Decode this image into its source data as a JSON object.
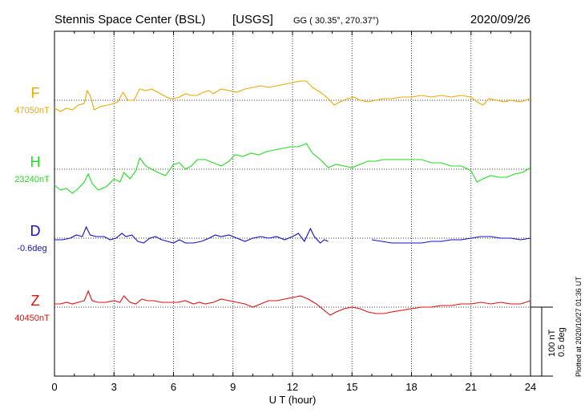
{
  "header": {
    "station": "Stennis Space Center (BSL)",
    "agency": "[USGS]",
    "coords": "GG ( 30.35°, 270.37°)",
    "date": "2020/09/26"
  },
  "footer": {
    "plotted_note": "Plotted at 2020/10/27 01:36 UT",
    "scale_nt": "100 nT",
    "scale_deg": "0.5 deg"
  },
  "chart_data": {
    "type": "line",
    "title": "Stennis Space Center (BSL)",
    "xlabel": "U T (hour)",
    "ylabel": "",
    "xlim": [
      0,
      24
    ],
    "xticks": [
      "0",
      "3",
      "6",
      "9",
      "12",
      "15",
      "18",
      "21",
      "24"
    ],
    "xtick_values": [
      0,
      3,
      6,
      9,
      12,
      15,
      18,
      21,
      24
    ],
    "grid": true,
    "scale": "100 nT / 0.5 deg per bar",
    "series": [
      {
        "name": "F",
        "baseline_label": "47050nT",
        "color": "#f0a800",
        "offset_units": [
          [
            0,
            -10
          ],
          [
            0.3,
            -14
          ],
          [
            0.6,
            -10
          ],
          [
            0.9,
            -12
          ],
          [
            1.2,
            -6
          ],
          [
            1.5,
            -4
          ],
          [
            1.65,
            12
          ],
          [
            1.8,
            6
          ],
          [
            2.0,
            -12
          ],
          [
            2.3,
            -8
          ],
          [
            2.7,
            -6
          ],
          [
            3.0,
            -4
          ],
          [
            3.2,
            -2
          ],
          [
            3.45,
            10
          ],
          [
            3.7,
            0
          ],
          [
            4.0,
            0
          ],
          [
            4.3,
            14
          ],
          [
            4.6,
            12
          ],
          [
            4.9,
            14
          ],
          [
            5.2,
            10
          ],
          [
            5.5,
            6
          ],
          [
            5.8,
            2
          ],
          [
            6.0,
            2
          ],
          [
            6.3,
            4
          ],
          [
            6.6,
            8
          ],
          [
            6.9,
            6
          ],
          [
            7.2,
            6
          ],
          [
            7.5,
            10
          ],
          [
            7.8,
            12
          ],
          [
            8.0,
            8
          ],
          [
            8.4,
            14
          ],
          [
            8.8,
            12
          ],
          [
            9.2,
            10
          ],
          [
            9.6,
            14
          ],
          [
            10.0,
            16
          ],
          [
            10.4,
            18
          ],
          [
            10.8,
            16
          ],
          [
            11.2,
            18
          ],
          [
            11.6,
            20
          ],
          [
            12.0,
            22
          ],
          [
            12.4,
            24
          ],
          [
            12.7,
            24
          ],
          [
            13.0,
            16
          ],
          [
            13.4,
            10
          ],
          [
            13.8,
            2
          ],
          [
            14.1,
            -6
          ],
          [
            14.4,
            -2
          ],
          [
            14.8,
            2
          ],
          [
            15.1,
            4
          ],
          [
            15.4,
            0
          ],
          [
            15.8,
            -2
          ],
          [
            16.2,
            0
          ],
          [
            16.6,
            2
          ],
          [
            17.0,
            2
          ],
          [
            17.5,
            4
          ],
          [
            18.0,
            4
          ],
          [
            18.5,
            6
          ],
          [
            19.0,
            4
          ],
          [
            19.5,
            6
          ],
          [
            20.0,
            4
          ],
          [
            20.5,
            6
          ],
          [
            21.0,
            4
          ],
          [
            21.3,
            -2
          ],
          [
            21.6,
            -6
          ],
          [
            21.9,
            2
          ],
          [
            22.3,
            0
          ],
          [
            22.7,
            -2
          ],
          [
            23.0,
            0
          ],
          [
            23.5,
            -2
          ],
          [
            24.0,
            2
          ]
        ]
      },
      {
        "name": "H",
        "baseline_label": "23240nT",
        "color": "#22dd22",
        "offset_units": [
          [
            0,
            -20
          ],
          [
            0.3,
            -26
          ],
          [
            0.6,
            -24
          ],
          [
            0.9,
            -30
          ],
          [
            1.2,
            -24
          ],
          [
            1.5,
            -16
          ],
          [
            1.7,
            -6
          ],
          [
            1.9,
            -18
          ],
          [
            2.2,
            -26
          ],
          [
            2.6,
            -22
          ],
          [
            3.0,
            -12
          ],
          [
            3.3,
            -16
          ],
          [
            3.5,
            -4
          ],
          [
            3.8,
            -12
          ],
          [
            4.1,
            -2
          ],
          [
            4.3,
            14
          ],
          [
            4.6,
            4
          ],
          [
            4.9,
            0
          ],
          [
            5.2,
            -4
          ],
          [
            5.6,
            -8
          ],
          [
            6.0,
            6
          ],
          [
            6.3,
            8
          ],
          [
            6.6,
            0
          ],
          [
            6.9,
            4
          ],
          [
            7.2,
            12
          ],
          [
            7.6,
            12
          ],
          [
            8.0,
            8
          ],
          [
            8.4,
            4
          ],
          [
            8.8,
            10
          ],
          [
            9.1,
            18
          ],
          [
            9.5,
            16
          ],
          [
            9.9,
            20
          ],
          [
            10.3,
            18
          ],
          [
            10.7,
            22
          ],
          [
            11.1,
            24
          ],
          [
            11.5,
            26
          ],
          [
            11.9,
            28
          ],
          [
            12.3,
            28
          ],
          [
            12.7,
            32
          ],
          [
            13.0,
            20
          ],
          [
            13.4,
            12
          ],
          [
            13.8,
            2
          ],
          [
            14.2,
            6
          ],
          [
            14.6,
            4
          ],
          [
            15.0,
            2
          ],
          [
            15.4,
            6
          ],
          [
            15.8,
            10
          ],
          [
            16.2,
            10
          ],
          [
            16.6,
            12
          ],
          [
            17.0,
            12
          ],
          [
            17.5,
            12
          ],
          [
            18.0,
            12
          ],
          [
            18.5,
            12
          ],
          [
            19.0,
            8
          ],
          [
            19.5,
            8
          ],
          [
            20.0,
            4
          ],
          [
            20.5,
            4
          ],
          [
            21.0,
            -2
          ],
          [
            21.3,
            -16
          ],
          [
            21.6,
            -12
          ],
          [
            22.0,
            -8
          ],
          [
            22.4,
            -10
          ],
          [
            22.8,
            -10
          ],
          [
            23.2,
            -6
          ],
          [
            23.6,
            -4
          ],
          [
            24.0,
            2
          ]
        ]
      },
      {
        "name": "D",
        "baseline_label": "-0.6deg",
        "color": "#1010cc",
        "offset_units": [
          [
            0,
            -2
          ],
          [
            0.4,
            -2
          ],
          [
            0.8,
            0
          ],
          [
            1.1,
            4
          ],
          [
            1.4,
            2
          ],
          [
            1.6,
            14
          ],
          [
            1.8,
            4
          ],
          [
            2.1,
            2
          ],
          [
            2.5,
            2
          ],
          [
            2.8,
            -2
          ],
          [
            3.1,
            0
          ],
          [
            3.4,
            6
          ],
          [
            3.6,
            2
          ],
          [
            3.9,
            4
          ],
          [
            4.2,
            -4
          ],
          [
            4.5,
            -6
          ],
          [
            4.8,
            0
          ],
          [
            5.1,
            2
          ],
          [
            5.4,
            -2
          ],
          [
            5.7,
            -4
          ],
          [
            6.0,
            -6
          ],
          [
            6.3,
            -2
          ],
          [
            6.6,
            -6
          ],
          [
            7.0,
            -6
          ],
          [
            7.4,
            -4
          ],
          [
            7.8,
            0
          ],
          [
            8.1,
            4
          ],
          [
            8.4,
            2
          ],
          [
            8.8,
            4
          ],
          [
            9.2,
            0
          ],
          [
            9.6,
            -4
          ],
          [
            10.0,
            0
          ],
          [
            10.4,
            2
          ],
          [
            10.8,
            0
          ],
          [
            11.2,
            2
          ],
          [
            11.6,
            -2
          ],
          [
            12.0,
            2
          ],
          [
            12.3,
            6
          ],
          [
            12.6,
            -4
          ],
          [
            12.9,
            12
          ],
          [
            13.1,
            2
          ],
          [
            13.4,
            -6
          ],
          [
            13.6,
            -2
          ],
          [
            13.8,
            -4
          ],
          [
            null,
            null
          ],
          [
            16.0,
            -2
          ],
          [
            16.5,
            -4
          ],
          [
            17.0,
            -6
          ],
          [
            17.5,
            -6
          ],
          [
            18.0,
            -6
          ],
          [
            18.5,
            -6
          ],
          [
            19.0,
            -4
          ],
          [
            19.5,
            -4
          ],
          [
            20.0,
            -2
          ],
          [
            20.5,
            -2
          ],
          [
            21.0,
            0
          ],
          [
            21.5,
            2
          ],
          [
            22.0,
            2
          ],
          [
            22.5,
            0
          ],
          [
            23.0,
            0
          ],
          [
            23.5,
            -2
          ],
          [
            24.0,
            0
          ]
        ]
      },
      {
        "name": "Z",
        "baseline_label": "40450nT",
        "color": "#e01010",
        "offset_units": [
          [
            0,
            4
          ],
          [
            0.3,
            4
          ],
          [
            0.6,
            6
          ],
          [
            0.9,
            4
          ],
          [
            1.2,
            6
          ],
          [
            1.5,
            8
          ],
          [
            1.7,
            20
          ],
          [
            1.9,
            8
          ],
          [
            2.2,
            6
          ],
          [
            2.6,
            6
          ],
          [
            3.0,
            8
          ],
          [
            3.3,
            6
          ],
          [
            3.5,
            14
          ],
          [
            3.8,
            6
          ],
          [
            4.1,
            4
          ],
          [
            4.4,
            10
          ],
          [
            4.7,
            8
          ],
          [
            5.0,
            8
          ],
          [
            5.4,
            6
          ],
          [
            5.8,
            6
          ],
          [
            6.2,
            6
          ],
          [
            6.6,
            8
          ],
          [
            7.0,
            4
          ],
          [
            7.3,
            6
          ],
          [
            7.6,
            4
          ],
          [
            8.0,
            6
          ],
          [
            8.4,
            10
          ],
          [
            8.8,
            8
          ],
          [
            9.2,
            6
          ],
          [
            9.6,
            4
          ],
          [
            10.0,
            0
          ],
          [
            10.4,
            4
          ],
          [
            10.8,
            8
          ],
          [
            11.2,
            8
          ],
          [
            11.6,
            10
          ],
          [
            12.0,
            12
          ],
          [
            12.4,
            14
          ],
          [
            12.8,
            10
          ],
          [
            13.2,
            4
          ],
          [
            13.6,
            -4
          ],
          [
            13.9,
            -10
          ],
          [
            14.2,
            -6
          ],
          [
            14.6,
            -2
          ],
          [
            15.0,
            0
          ],
          [
            15.4,
            -2
          ],
          [
            15.8,
            -6
          ],
          [
            16.2,
            -8
          ],
          [
            16.6,
            -8
          ],
          [
            17.0,
            -6
          ],
          [
            17.5,
            -4
          ],
          [
            18.0,
            -2
          ],
          [
            18.5,
            0
          ],
          [
            19.0,
            0
          ],
          [
            19.5,
            2
          ],
          [
            20.0,
            2
          ],
          [
            20.5,
            4
          ],
          [
            21.0,
            4
          ],
          [
            21.5,
            6
          ],
          [
            22.0,
            4
          ],
          [
            22.5,
            6
          ],
          [
            23.0,
            4
          ],
          [
            23.5,
            4
          ],
          [
            24.0,
            8
          ]
        ]
      }
    ]
  }
}
